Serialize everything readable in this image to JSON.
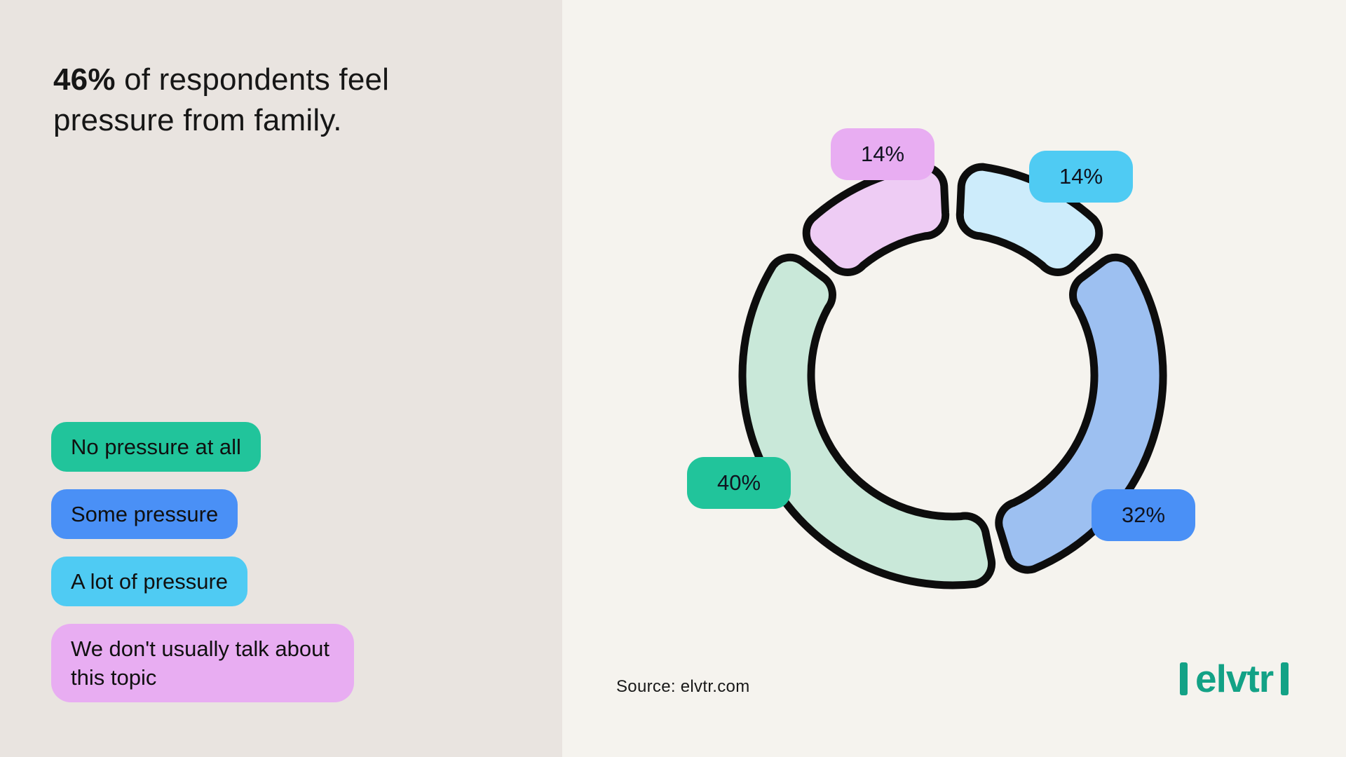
{
  "headline": {
    "stat": "46%",
    "rest": " of respondents feel pressure from family."
  },
  "legend": {
    "items": [
      {
        "label": "No pressure at all",
        "color": "#21c49b"
      },
      {
        "label": "Some pressure",
        "color": "#4a90f6"
      },
      {
        "label": "A lot of pressure",
        "color": "#4fcbf3"
      },
      {
        "label": "We don't usually talk about this topic",
        "color": "#e8adf2"
      }
    ]
  },
  "chart_data": {
    "type": "pie",
    "subtype": "donut",
    "title": "46% of respondents feel pressure from family.",
    "units": "percent",
    "direction": "clockwise",
    "start_angle_deg": 0,
    "outline_color": "#0d0d0d",
    "legend_position": "left",
    "segments": [
      {
        "label": "A lot of pressure",
        "value": 14,
        "display": "14%",
        "fill_color": "#cdecfb",
        "badge_color": "#4fcbf3"
      },
      {
        "label": "Some pressure",
        "value": 32,
        "display": "32%",
        "fill_color": "#9dc0f1",
        "badge_color": "#4a90f6"
      },
      {
        "label": "No pressure at all",
        "value": 40,
        "display": "40%",
        "fill_color": "#c9e8d9",
        "badge_color": "#21c49b"
      },
      {
        "label": "We don't usually talk about this topic",
        "value": 14,
        "display": "14%",
        "fill_color": "#eeccf4",
        "badge_color": "#e8adf2"
      }
    ]
  },
  "source": {
    "text": "Source: elvtr.com"
  },
  "brand": {
    "logo_text": "elvtr",
    "color": "#13a286"
  }
}
